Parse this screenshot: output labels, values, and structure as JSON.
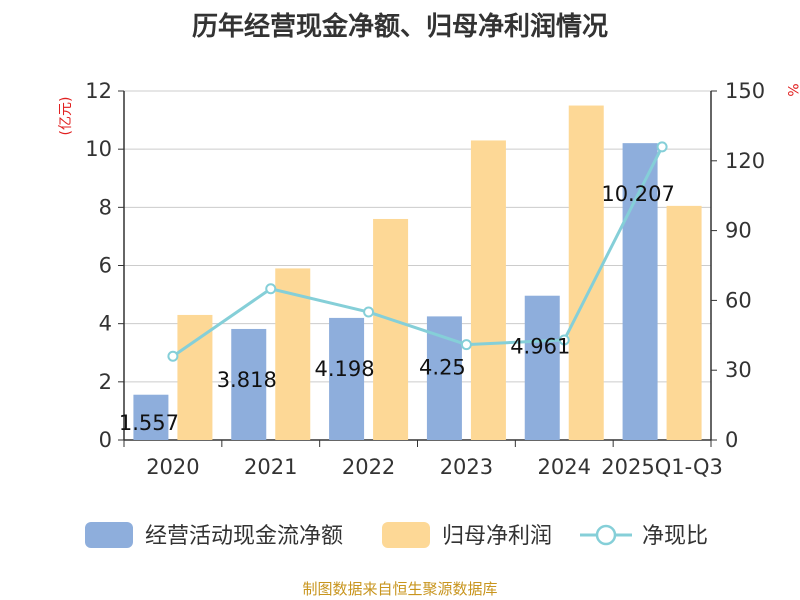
{
  "title": "历年经营现金净额、归母净利润情况",
  "source": "制图数据来自恒生聚源数据库",
  "chart_data": {
    "type": "bar",
    "categories": [
      "2020",
      "2021",
      "2022",
      "2023",
      "2024",
      "2025Q1-Q3"
    ],
    "series": [
      {
        "name": "经营活动现金流净额",
        "kind": "bar",
        "axis": "left",
        "color": "#8eaedc",
        "values": [
          1.557,
          3.818,
          4.198,
          4.25,
          4.961,
          10.207
        ],
        "labels": [
          "1.557",
          "3.818",
          "4.198",
          "4.25",
          "4.961",
          "10.207"
        ]
      },
      {
        "name": "归母净利润",
        "kind": "bar",
        "axis": "left",
        "color": "#fdd896",
        "values": [
          4.3,
          5.9,
          7.6,
          10.3,
          11.5,
          8.05
        ]
      },
      {
        "name": "净现比",
        "kind": "line",
        "axis": "right",
        "color": "#85cfd8",
        "values": [
          36,
          65,
          55,
          41,
          43,
          126
        ]
      }
    ],
    "left_axis": {
      "unit": "(亿元)",
      "ylim": [
        0,
        12
      ],
      "ticks": [
        "0",
        "2",
        "4",
        "6",
        "8",
        "10",
        "12"
      ]
    },
    "right_axis": {
      "unit": "%",
      "ylim": [
        0,
        150
      ],
      "ticks": [
        "0",
        "30",
        "60",
        "90",
        "120",
        "150"
      ]
    },
    "legend_position": "bottom",
    "grid": true
  }
}
